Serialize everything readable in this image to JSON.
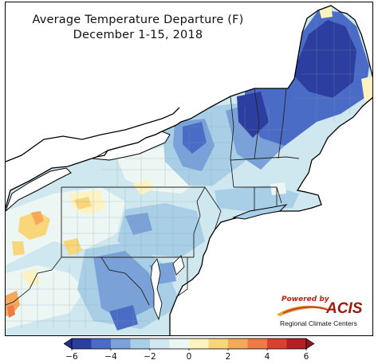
{
  "title": {
    "line1": "Average Temperature Departure (F)",
    "line2": "December 1-15, 2018"
  },
  "logo": {
    "powered_by": "Powered by",
    "brand": "ACIS",
    "subtitle": "Regional Climate Centers"
  },
  "colorbar": {
    "unit": "F",
    "ticks": [
      "−6",
      "−4",
      "−2",
      "0",
      "2",
      "4",
      "6"
    ],
    "bins": [
      {
        "from": -6,
        "to": -5,
        "color": "#2c3fa0"
      },
      {
        "from": -5,
        "to": -4,
        "color": "#4a6cc6"
      },
      {
        "from": -4,
        "to": -3,
        "color": "#7aa2d8"
      },
      {
        "from": -3,
        "to": -2,
        "color": "#a9cfe6"
      },
      {
        "from": -2,
        "to": -1,
        "color": "#cfe7ef"
      },
      {
        "from": -1,
        "to": 0,
        "color": "#ecf6f3"
      },
      {
        "from": 0,
        "to": 1,
        "color": "#fdf3c0"
      },
      {
        "from": 1,
        "to": 2,
        "color": "#fad67a"
      },
      {
        "from": 2,
        "to": 3,
        "color": "#f6a85b"
      },
      {
        "from": 3,
        "to": 4,
        "color": "#ee7a46"
      },
      {
        "from": 4,
        "to": 5,
        "color": "#d9412f"
      },
      {
        "from": 5,
        "to": 6,
        "color": "#b51f24"
      }
    ],
    "under_color": "#1f2f8a",
    "over_color": "#8e1620"
  },
  "map": {
    "region": "Northeast United States",
    "water_color": "#ffffff",
    "boundary_color": "#000000"
  }
}
